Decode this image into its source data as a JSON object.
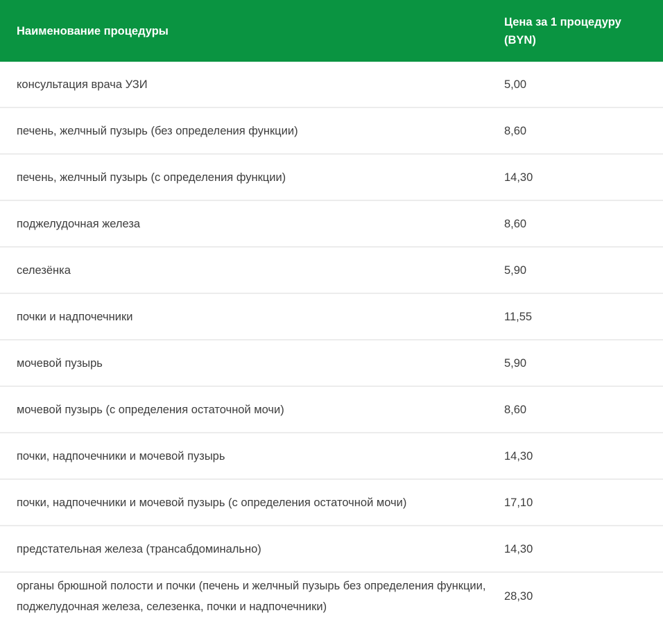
{
  "table": {
    "header": {
      "procedure_label": "Наименование процедуры",
      "price_label": "Цена за 1 процедуру (BYN)"
    },
    "rows": [
      {
        "name": "консультация врача УЗИ",
        "price": "5,00"
      },
      {
        "name": "печень, желчный пузырь (без определения функции)",
        "price": "8,60"
      },
      {
        "name": "печень, желчный пузырь (с определения функции)",
        "price": "14,30"
      },
      {
        "name": "поджелудочная железа",
        "price": "8,60"
      },
      {
        "name": "селезёнка",
        "price": "5,90"
      },
      {
        "name": "почки и надпочечники",
        "price": "11,55"
      },
      {
        "name": "мочевой пузырь",
        "price": "5,90"
      },
      {
        "name": "мочевой пузырь (с определения остаточной мочи)",
        "price": "8,60"
      },
      {
        "name": "почки, надпочечники и мочевой пузырь",
        "price": "14,30"
      },
      {
        "name": "почки, надпочечники и мочевой пузырь (с определения остаточной мочи)",
        "price": "17,10"
      },
      {
        "name": "предстательная железа (трансабдоминально)",
        "price": "14,30"
      },
      {
        "name": "органы брюшной полости и почки (печень и желчный пузырь без определения функции, поджелудочная железа, селезенка, почки и надпочечники)",
        "price": "28,30"
      }
    ]
  },
  "colors": {
    "header_bg": "#0a9441",
    "header_text": "#ffffff",
    "row_text": "#3d3d3d",
    "row_border": "#ececec"
  }
}
